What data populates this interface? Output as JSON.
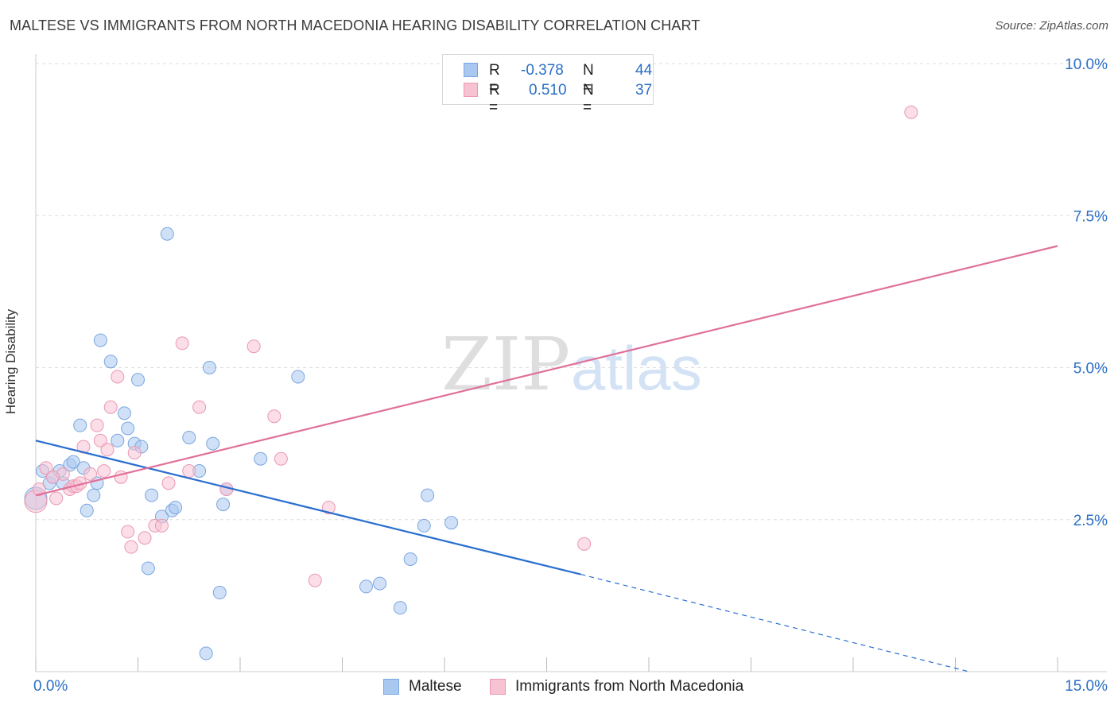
{
  "header": {
    "title": "MALTESE VS IMMIGRANTS FROM NORTH MACEDONIA HEARING DISABILITY CORRELATION CHART",
    "source": "Source: ZipAtlas.com"
  },
  "legend": {
    "r_label": "R =",
    "n_label": "N =",
    "rows": [
      {
        "r": "-0.378",
        "n": "44",
        "color": "#a9c8f0",
        "border": "#7aa6df"
      },
      {
        "r": "0.510",
        "n": "37",
        "color": "#f7c3d3",
        "border": "#ea98b2"
      }
    ]
  },
  "watermark": {
    "zip": "ZIP",
    "atlas": "atlas"
  },
  "chart_data": {
    "type": "scatter",
    "title": "MALTESE VS IMMIGRANTS FROM NORTH MACEDONIA HEARING DISABILITY CORRELATION CHART",
    "xlabel": "",
    "ylabel": "Hearing Disability",
    "xlim": [
      0,
      15.0
    ],
    "ylim": [
      0,
      10.0
    ],
    "x_tick_labels": [
      "0.0%",
      "15.0%"
    ],
    "y_ticks": [
      {
        "value": 2.5,
        "label": "2.5%"
      },
      {
        "value": 5.0,
        "label": "5.0%"
      },
      {
        "value": 7.5,
        "label": "7.5%"
      },
      {
        "value": 10.0,
        "label": "10.0%"
      }
    ],
    "grid": true,
    "series": [
      {
        "name": "Maltese",
        "color": "#a9c8f0",
        "stroke": "#7aa6df",
        "line_color": "#2a6fcf",
        "trend": {
          "x0": 0.0,
          "y0": 3.8,
          "x1": 8.0,
          "y1": 1.6,
          "dash_to_x": 13.7,
          "dash_to_y": 0.0
        },
        "points": [
          [
            0.1,
            3.3
          ],
          [
            0.2,
            3.1
          ],
          [
            0.25,
            3.2
          ],
          [
            0.35,
            3.3
          ],
          [
            0.4,
            3.1
          ],
          [
            0.5,
            3.4
          ],
          [
            0.55,
            3.45
          ],
          [
            0.65,
            4.05
          ],
          [
            0.7,
            3.35
          ],
          [
            0.75,
            2.65
          ],
          [
            0.85,
            2.9
          ],
          [
            0.9,
            3.1
          ],
          [
            0.95,
            5.45
          ],
          [
            1.1,
            5.1
          ],
          [
            1.2,
            3.8
          ],
          [
            1.3,
            4.25
          ],
          [
            1.35,
            4.0
          ],
          [
            1.45,
            3.75
          ],
          [
            1.5,
            4.8
          ],
          [
            1.55,
            3.7
          ],
          [
            1.65,
            1.7
          ],
          [
            1.7,
            2.9
          ],
          [
            1.85,
            2.55
          ],
          [
            1.93,
            7.2
          ],
          [
            2.0,
            2.65
          ],
          [
            2.05,
            2.7
          ],
          [
            2.25,
            3.85
          ],
          [
            2.4,
            3.3
          ],
          [
            2.5,
            0.3
          ],
          [
            2.55,
            5.0
          ],
          [
            2.6,
            3.75
          ],
          [
            2.7,
            1.3
          ],
          [
            2.75,
            2.75
          ],
          [
            2.8,
            3.0
          ],
          [
            3.3,
            3.5
          ],
          [
            3.85,
            4.85
          ],
          [
            4.85,
            1.4
          ],
          [
            5.05,
            1.45
          ],
          [
            5.35,
            1.05
          ],
          [
            5.5,
            1.85
          ],
          [
            5.7,
            2.4
          ],
          [
            5.75,
            2.9
          ],
          [
            6.1,
            2.45
          ],
          [
            0.0,
            2.85
          ]
        ]
      },
      {
        "name": "Immigrants from North Macedonia",
        "color": "#f7c3d3",
        "stroke": "#ea98b2",
        "line_color": "#e0709a",
        "trend": {
          "x0": 0.0,
          "y0": 2.9,
          "x1": 15.0,
          "y1": 7.0
        },
        "points": [
          [
            0.0,
            2.8
          ],
          [
            0.15,
            3.35
          ],
          [
            0.3,
            2.85
          ],
          [
            0.4,
            3.25
          ],
          [
            0.5,
            3.0
          ],
          [
            0.55,
            3.05
          ],
          [
            0.6,
            3.05
          ],
          [
            0.7,
            3.7
          ],
          [
            0.8,
            3.25
          ],
          [
            0.9,
            4.05
          ],
          [
            0.95,
            3.8
          ],
          [
            1.05,
            3.65
          ],
          [
            1.1,
            4.35
          ],
          [
            1.2,
            4.85
          ],
          [
            1.25,
            3.2
          ],
          [
            1.35,
            2.3
          ],
          [
            1.4,
            2.05
          ],
          [
            1.45,
            3.6
          ],
          [
            1.6,
            2.2
          ],
          [
            1.75,
            2.4
          ],
          [
            1.85,
            2.4
          ],
          [
            1.95,
            3.1
          ],
          [
            2.15,
            5.4
          ],
          [
            2.25,
            3.3
          ],
          [
            2.4,
            4.35
          ],
          [
            2.8,
            3.0
          ],
          [
            3.2,
            5.35
          ],
          [
            3.5,
            4.2
          ],
          [
            3.6,
            3.5
          ],
          [
            4.1,
            1.5
          ],
          [
            4.3,
            2.7
          ],
          [
            8.05,
            2.1
          ],
          [
            12.85,
            9.2
          ],
          [
            0.05,
            3.0
          ],
          [
            0.25,
            3.2
          ],
          [
            0.65,
            3.1
          ],
          [
            1.0,
            3.3
          ]
        ]
      }
    ]
  }
}
